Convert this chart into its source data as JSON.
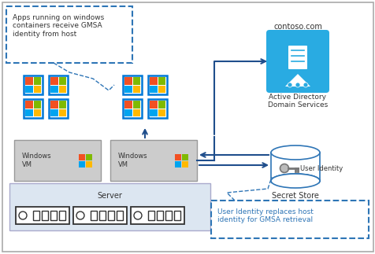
{
  "bg_color": "white",
  "border_color": "#888888",
  "blue_arrow": "#1f4e8c",
  "dashed_blue": "#2e75b6",
  "win_blue": "#0078d7",
  "ad_blue": "#29abe2",
  "server_fill": "#dce6f1",
  "server_border": "#aaaacc",
  "vm_fill": "#cccccc",
  "vm_border": "#999999",
  "annotation_text_1": "Apps running on windows\ncontainers receive GMSA\nidentity from host",
  "annotation_text_2": "User Identity replaces host\nidentity for GMSA retrieval",
  "label_ad": "Active Directory\nDomain Services",
  "label_ss": "Secret Store",
  "label_contoso": "contoso.com",
  "label_server": "Server",
  "label_vm1": "Windows\nVM",
  "label_vm2": "Windows\nVM",
  "label_user_identity": "User Identity",
  "win_colors": [
    "#f25022",
    "#7fba00",
    "#00a4ef",
    "#ffb900"
  ]
}
